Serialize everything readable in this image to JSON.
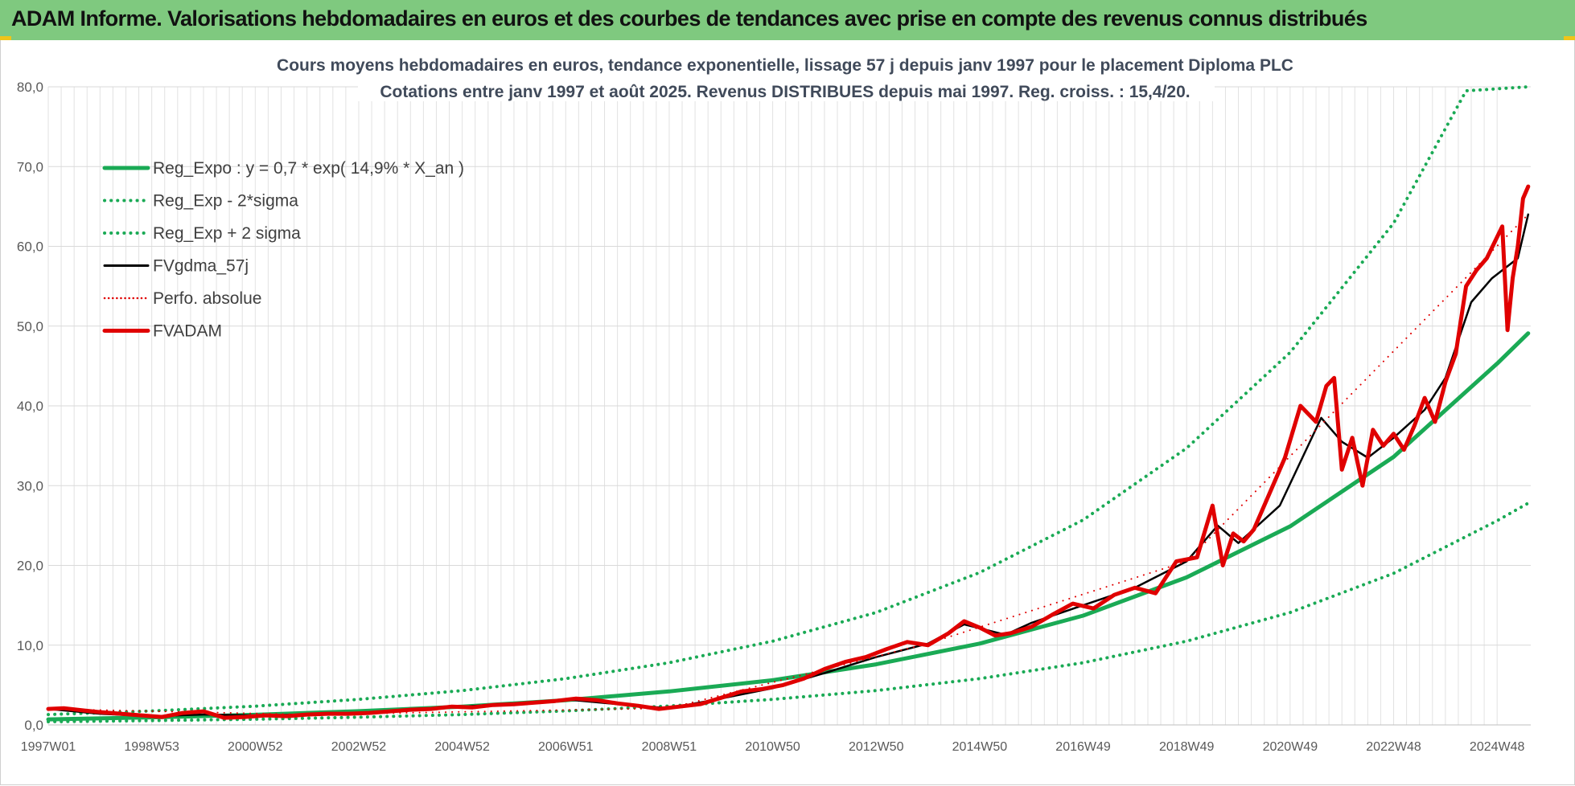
{
  "header": {
    "title": "ADAM Informe. Valorisations hebdomadaires en euros et des courbes de tendances avec prise en compte des revenus connus distribués"
  },
  "chart_data": {
    "type": "line",
    "title_lines": [
      "Cours moyens hebdomadaires en euros, tendance exponentielle, lissage 57 j depuis janv 1997  pour le placement Diploma PLC",
      "Cotations entre janv 1997 et août 2025.  Revenus DISTRIBUES depuis mai 1997. Reg. croiss. : 15,4/20."
    ],
    "ylim": [
      0,
      80
    ],
    "xlim": [
      1997.0,
      2025.65
    ],
    "y_ticks": [
      0,
      10,
      20,
      30,
      40,
      50,
      60,
      70,
      80
    ],
    "y_tick_labels": [
      "0,0",
      "10,0",
      "20,0",
      "30,0",
      "40,0",
      "50,0",
      "60,0",
      "70,0",
      "80,0"
    ],
    "x_ticks": [
      1997.0,
      1999.0,
      2001.0,
      2003.0,
      2005.0,
      2007.0,
      2009.0,
      2011.0,
      2013.0,
      2015.0,
      2017.0,
      2019.0,
      2021.0,
      2023.0,
      2025.0
    ],
    "x_tick_labels": [
      "1997W01",
      "1998W53",
      "2000W52",
      "2002W52",
      "2004W52",
      "2006W51",
      "2008W51",
      "2010W50",
      "2012W50",
      "2014W50",
      "2016W49",
      "2018W49",
      "2020W49",
      "2022W48",
      "2024W48"
    ],
    "grid": true,
    "legend_position": "top-left",
    "colors": {
      "reg_expo": "#1aaa55",
      "sigma": "#1aaa55",
      "gdma": "#000000",
      "perfo": "#e00000",
      "adam": "#e00000"
    },
    "series": [
      {
        "name": "Reg_Expo : y = 0,7 * exp( 14,9% *  X_an )",
        "style": "solid-thick",
        "color": "#1aaa55",
        "x": [
          1997.0,
          1999.0,
          2001.0,
          2003.0,
          2005.0,
          2007.0,
          2009.0,
          2011.0,
          2013.0,
          2015.0,
          2017.0,
          2019.0,
          2021.0,
          2023.0,
          2025.0,
          2025.6
        ],
        "values": [
          0.7,
          0.95,
          1.27,
          1.72,
          2.3,
          3.1,
          4.2,
          5.6,
          7.6,
          10.2,
          13.7,
          18.5,
          24.9,
          33.6,
          45.3,
          49.1
        ]
      },
      {
        "name": "Reg_Exp - 2*sigma",
        "style": "dotted",
        "color": "#1aaa55",
        "x": [
          1997.0,
          1999.0,
          2001.0,
          2003.0,
          2005.0,
          2007.0,
          2009.0,
          2011.0,
          2013.0,
          2015.0,
          2017.0,
          2019.0,
          2021.0,
          2023.0,
          2025.0,
          2025.6
        ],
        "values": [
          0.4,
          0.54,
          0.72,
          0.97,
          1.3,
          1.75,
          2.37,
          3.2,
          4.3,
          5.8,
          7.8,
          10.5,
          14.1,
          19.0,
          25.6,
          27.8
        ]
      },
      {
        "name": "Reg_Exp + 2 sigma",
        "style": "dotted",
        "color": "#1aaa55",
        "x": [
          1997.0,
          1999.0,
          2001.0,
          2003.0,
          2005.0,
          2007.0,
          2009.0,
          2011.0,
          2013.0,
          2015.0,
          2017.0,
          2019.0,
          2021.0,
          2023.0,
          2024.4,
          2025.6
        ],
        "values": [
          1.3,
          1.75,
          2.35,
          3.2,
          4.3,
          5.8,
          7.8,
          10.5,
          14.1,
          19.1,
          25.7,
          34.7,
          46.7,
          62.9,
          79.5,
          80.0
        ]
      },
      {
        "name": "FVgdma_57j",
        "style": "solid",
        "color": "#000000",
        "x": [
          1997.0,
          1998.0,
          1999.0,
          2000.0,
          2001.0,
          2002.0,
          2003.0,
          2004.0,
          2005.0,
          2006.0,
          2007.0,
          2008.0,
          2009.0,
          2010.0,
          2011.0,
          2012.0,
          2013.0,
          2014.0,
          2014.7,
          2015.5,
          2016.0,
          2017.0,
          2018.0,
          2019.0,
          2019.6,
          2020.0,
          2020.8,
          2021.6,
          2022.0,
          2022.5,
          2023.0,
          2023.6,
          2024.0,
          2024.5,
          2024.9,
          2025.2,
          2025.4,
          2025.6
        ],
        "values": [
          2.0,
          1.4,
          1.1,
          1.3,
          1.2,
          1.3,
          1.5,
          1.9,
          2.3,
          2.7,
          3.2,
          2.6,
          2.1,
          3.3,
          4.6,
          6.5,
          8.5,
          10.2,
          12.6,
          11.3,
          12.8,
          15.0,
          17.2,
          20.5,
          25.0,
          22.8,
          27.5,
          38.5,
          35.5,
          33.5,
          36.0,
          39.5,
          43.5,
          53.0,
          56.0,
          57.5,
          58.5,
          64.0
        ]
      },
      {
        "name": "Perfo. absolue",
        "style": "dotted",
        "color": "#e00000",
        "x": [
          1997.0,
          2002.0,
          2009.0,
          2014.0,
          2019.0,
          2025.6
        ],
        "values": [
          2.0,
          1.3,
          2.1,
          10.2,
          20.5,
          64.0
        ]
      },
      {
        "name": "FVADAM",
        "style": "solid-thick",
        "color": "#e00000",
        "x": [
          1997.0,
          1997.3,
          1997.7,
          1998.0,
          1998.4,
          1998.8,
          1999.2,
          1999.6,
          2000.0,
          2000.4,
          2000.8,
          2001.2,
          2001.6,
          2002.0,
          2002.4,
          2002.8,
          2003.2,
          2003.6,
          2004.0,
          2004.4,
          2004.8,
          2005.2,
          2005.6,
          2006.0,
          2006.4,
          2006.8,
          2007.2,
          2007.6,
          2008.0,
          2008.4,
          2008.8,
          2009.2,
          2009.6,
          2010.0,
          2010.4,
          2010.8,
          2011.2,
          2011.6,
          2012.0,
          2012.4,
          2012.8,
          2013.2,
          2013.6,
          2014.0,
          2014.4,
          2014.7,
          2015.0,
          2015.3,
          2015.6,
          2016.0,
          2016.4,
          2016.8,
          2017.2,
          2017.6,
          2018.0,
          2018.4,
          2018.8,
          2019.2,
          2019.5,
          2019.7,
          2019.9,
          2020.1,
          2020.3,
          2020.6,
          2020.9,
          2021.2,
          2021.5,
          2021.7,
          2021.85,
          2022.0,
          2022.2,
          2022.4,
          2022.6,
          2022.8,
          2023.0,
          2023.2,
          2023.4,
          2023.6,
          2023.8,
          2024.0,
          2024.2,
          2024.4,
          2024.6,
          2024.8,
          2024.95,
          2025.1,
          2025.2,
          2025.3,
          2025.4,
          2025.5,
          2025.6
        ],
        "values": [
          2.0,
          2.1,
          1.8,
          1.6,
          1.4,
          1.2,
          1.0,
          1.5,
          1.7,
          0.9,
          1.0,
          1.2,
          1.1,
          1.3,
          1.4,
          1.4,
          1.5,
          1.7,
          1.9,
          2.0,
          2.3,
          2.2,
          2.5,
          2.6,
          2.8,
          3.0,
          3.3,
          3.1,
          2.7,
          2.4,
          2.0,
          2.3,
          2.6,
          3.4,
          4.2,
          4.5,
          5.0,
          5.8,
          7.0,
          7.9,
          8.5,
          9.5,
          10.4,
          10.0,
          11.5,
          13.0,
          12.2,
          11.2,
          11.5,
          12.3,
          13.8,
          15.2,
          14.6,
          16.3,
          17.2,
          16.5,
          20.5,
          21.0,
          27.5,
          20.0,
          24.0,
          23.0,
          24.5,
          29.0,
          33.5,
          40.0,
          38.0,
          42.5,
          43.5,
          32.0,
          36.0,
          30.0,
          37.0,
          35.0,
          36.5,
          34.5,
          37.5,
          41.0,
          38.0,
          43.0,
          46.5,
          55.0,
          57.0,
          58.5,
          60.5,
          62.5,
          49.5,
          56.0,
          60.0,
          66.0,
          67.5
        ]
      }
    ]
  }
}
